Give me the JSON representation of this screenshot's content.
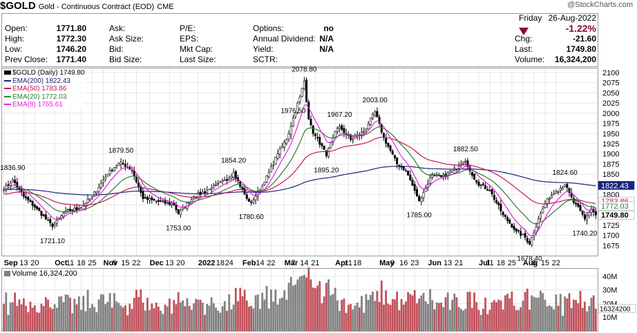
{
  "header": {
    "symbol": "$GOLD",
    "name": "Gold - Continuous Contract (EOD)",
    "exchange": "CME",
    "watermark": "@StockCharts.com"
  },
  "quote": {
    "col1": [
      {
        "label": "Open:",
        "value": "1771.80"
      },
      {
        "label": "High:",
        "value": "1772.30"
      },
      {
        "label": "Low:",
        "value": "1746.20"
      },
      {
        "label": "Prev Close:",
        "value": "1771.40"
      }
    ],
    "col2": [
      "Ask:",
      "Ask Size:",
      "Bid:",
      "Bid Size:"
    ],
    "col3": [
      "P/E:",
      "EPS:",
      "Mkt Cap:",
      "Last Size:"
    ],
    "col4": [
      {
        "label": "Options:",
        "value": "no"
      },
      {
        "label": "Annual Dividend:",
        "value": "N/A"
      },
      {
        "label": "Yield:",
        "value": "N/A"
      },
      {
        "label": "SCTR:",
        "value": ""
      }
    ],
    "day": "Friday",
    "date": "26-Aug-2022",
    "change_pct": "-1.22%",
    "right": [
      {
        "label": "Chg:",
        "value": "-21.60"
      },
      {
        "label": "Last:",
        "value": "1749.80"
      },
      {
        "label": "Volume:",
        "value": "16,324,200"
      }
    ],
    "down_color": "#8b0a2a"
  },
  "legend": {
    "main": "$GOLD (Daily) 1749.80",
    "ema": [
      {
        "text": "EMA(200) 1822.43",
        "color": "#1a237e"
      },
      {
        "text": "EMA(50) 1783.86",
        "color": "#c2185b"
      },
      {
        "text": "EMA(20) 1772.03",
        "color": "#2e7d32"
      },
      {
        "text": "EMA(8) 1765.61",
        "color": "#e91ee0"
      }
    ],
    "volume": "Volume 16,324,200"
  },
  "chart_data": {
    "type": "line",
    "title": "$GOLD (Daily) 1749.80",
    "series_note": "approximate daily closes Sep 2021 - Aug 2022",
    "xlabels": [
      {
        "t": "Sep",
        "bold": true,
        "i": 0
      },
      {
        "t": "13",
        "i": 9
      },
      {
        "t": "20",
        "i": 14
      },
      {
        "t": "Oct",
        "bold": true,
        "i": 23
      },
      {
        "t": "11",
        "i": 30
      },
      {
        "t": "18",
        "i": 35
      },
      {
        "t": "25",
        "i": 40
      },
      {
        "t": "Nov",
        "bold": true,
        "i": 45
      },
      {
        "t": "8",
        "i": 50
      },
      {
        "t": "15",
        "i": 55
      },
      {
        "t": "22",
        "i": 60
      },
      {
        "t": "Dec",
        "bold": true,
        "i": 66
      },
      {
        "t": "13",
        "i": 75
      },
      {
        "t": "20",
        "i": 80
      },
      {
        "t": "2022",
        "bold": true,
        "i": 88
      },
      {
        "t": "18",
        "i": 98
      },
      {
        "t": "24",
        "i": 102
      },
      {
        "t": "Feb",
        "bold": true,
        "i": 108
      },
      {
        "t": "14",
        "i": 116
      },
      {
        "t": "22",
        "i": 121
      },
      {
        "t": "Mar",
        "bold": true,
        "i": 127
      },
      {
        "t": "7",
        "i": 131
      },
      {
        "t": "14",
        "i": 136
      },
      {
        "t": "21",
        "i": 141
      },
      {
        "t": "Apr",
        "bold": true,
        "i": 150
      },
      {
        "t": "11",
        "i": 156
      },
      {
        "t": "18",
        "i": 160
      },
      {
        "t": "May",
        "bold": true,
        "i": 170
      },
      {
        "t": "9",
        "i": 176
      },
      {
        "t": "16",
        "i": 181
      },
      {
        "t": "23",
        "i": 186
      },
      {
        "t": "Jun",
        "bold": true,
        "i": 192
      },
      {
        "t": "13",
        "i": 201
      },
      {
        "t": "21",
        "i": 206
      },
      {
        "t": "Jul",
        "bold": true,
        "i": 215
      },
      {
        "t": "11",
        "i": 220
      },
      {
        "t": "18",
        "i": 225
      },
      {
        "t": "25",
        "i": 230
      },
      {
        "t": "Aug",
        "bold": true,
        "i": 235
      },
      {
        "t": "8",
        "i": 240
      },
      {
        "t": "15",
        "i": 245
      },
      {
        "t": "22",
        "i": 250
      }
    ],
    "anchors": [
      [
        0,
        1812
      ],
      [
        4,
        1836.9
      ],
      [
        9,
        1795
      ],
      [
        15,
        1765
      ],
      [
        22,
        1721.1
      ],
      [
        28,
        1760
      ],
      [
        34,
        1765
      ],
      [
        40,
        1795
      ],
      [
        48,
        1860
      ],
      [
        53,
        1879.5
      ],
      [
        58,
        1860
      ],
      [
        63,
        1790
      ],
      [
        70,
        1783
      ],
      [
        77,
        1775
      ],
      [
        79,
        1753
      ],
      [
        86,
        1795
      ],
      [
        94,
        1815
      ],
      [
        102,
        1840
      ],
      [
        104,
        1854.2
      ],
      [
        110,
        1790
      ],
      [
        112,
        1780.6
      ],
      [
        118,
        1830
      ],
      [
        124,
        1900
      ],
      [
        128,
        1935
      ],
      [
        134,
        2040
      ],
      [
        136,
        2078.8
      ],
      [
        138,
        1985
      ],
      [
        140,
        1950
      ],
      [
        144,
        1920
      ],
      [
        146,
        1895.2
      ],
      [
        150,
        1955
      ],
      [
        152,
        1967.2
      ],
      [
        157,
        1935
      ],
      [
        163,
        1955
      ],
      [
        168,
        2003
      ],
      [
        172,
        1940
      ],
      [
        178,
        1875
      ],
      [
        182,
        1860
      ],
      [
        186,
        1810
      ],
      [
        188,
        1785
      ],
      [
        194,
        1850
      ],
      [
        200,
        1845
      ],
      [
        206,
        1870
      ],
      [
        209,
        1882.5
      ],
      [
        214,
        1830
      ],
      [
        220,
        1810
      ],
      [
        226,
        1750
      ],
      [
        232,
        1710
      ],
      [
        236,
        1695
      ],
      [
        238,
        1678.4
      ],
      [
        242,
        1740
      ],
      [
        246,
        1790
      ],
      [
        250,
        1808
      ],
      [
        254,
        1824.6
      ],
      [
        258,
        1780
      ],
      [
        261,
        1760
      ],
      [
        263,
        1740.2
      ],
      [
        266,
        1765
      ],
      [
        268,
        1749.8
      ]
    ],
    "annotations": [
      {
        "t": "1836.90",
        "i": 4,
        "v": 1836.9,
        "pos": "above"
      },
      {
        "t": "1721.10",
        "i": 22,
        "v": 1721.1,
        "pos": "below"
      },
      {
        "t": "1879.50",
        "i": 53,
        "v": 1879.5,
        "pos": "above"
      },
      {
        "t": "1753.00",
        "i": 79,
        "v": 1753,
        "pos": "below"
      },
      {
        "t": "1854.20",
        "i": 104,
        "v": 1854.2,
        "pos": "above"
      },
      {
        "t": "1780.60",
        "i": 112,
        "v": 1780.6,
        "pos": "below"
      },
      {
        "t": "1976.50",
        "i": 131,
        "v": 1976.5,
        "pos": "above"
      },
      {
        "t": "2078.80",
        "i": 136,
        "v": 2078.8,
        "pos": "above"
      },
      {
        "t": "1895.20",
        "i": 146,
        "v": 1895.2,
        "pos": "below"
      },
      {
        "t": "1967.20",
        "i": 152,
        "v": 1967.2,
        "pos": "above"
      },
      {
        "t": "2003.00",
        "i": 168,
        "v": 2003,
        "pos": "above"
      },
      {
        "t": "1785.00",
        "i": 188,
        "v": 1785,
        "pos": "below"
      },
      {
        "t": "1882.50",
        "i": 209,
        "v": 1882.5,
        "pos": "above"
      },
      {
        "t": "1678.40",
        "i": 238,
        "v": 1678.4,
        "pos": "below"
      },
      {
        "t": "1824.60",
        "i": 254,
        "v": 1824.6,
        "pos": "above"
      },
      {
        "t": "1740.20",
        "i": 263,
        "v": 1740.2,
        "pos": "below"
      }
    ],
    "yticks": [
      1675,
      1700,
      1725,
      1750,
      1775,
      1800,
      1825,
      1850,
      1875,
      1900,
      1925,
      1950,
      1975,
      2000,
      2025,
      2050,
      2075,
      2100
    ],
    "ylim": [
      1650,
      2110
    ],
    "n_points": 269,
    "right_tags": [
      {
        "t": "1822.43",
        "v": 1822.43,
        "bg": "#1a237e",
        "fg": "#ffffff"
      },
      {
        "t": "1783.86",
        "v": 1783.86,
        "bg": "#ffffff",
        "fg": "#c2185b"
      },
      {
        "t": "1772.03",
        "v": 1772.03,
        "bg": "#ffffff",
        "fg": "#2e7d32"
      },
      {
        "t": "1749.80",
        "v": 1749.8,
        "bg": "#ffffff",
        "fg": "#000000"
      }
    ],
    "volume": {
      "yticks": [
        {
          "t": "40M",
          "v": 40
        },
        {
          "t": "30M",
          "v": 30
        },
        {
          "t": "20M",
          "v": 20
        },
        {
          "t": "10M",
          "v": 10
        }
      ],
      "ymax": 45,
      "last_tag": "16324200",
      "last_value": 16.3242,
      "up_color": "#808080",
      "down_color": "#c0505a"
    }
  }
}
